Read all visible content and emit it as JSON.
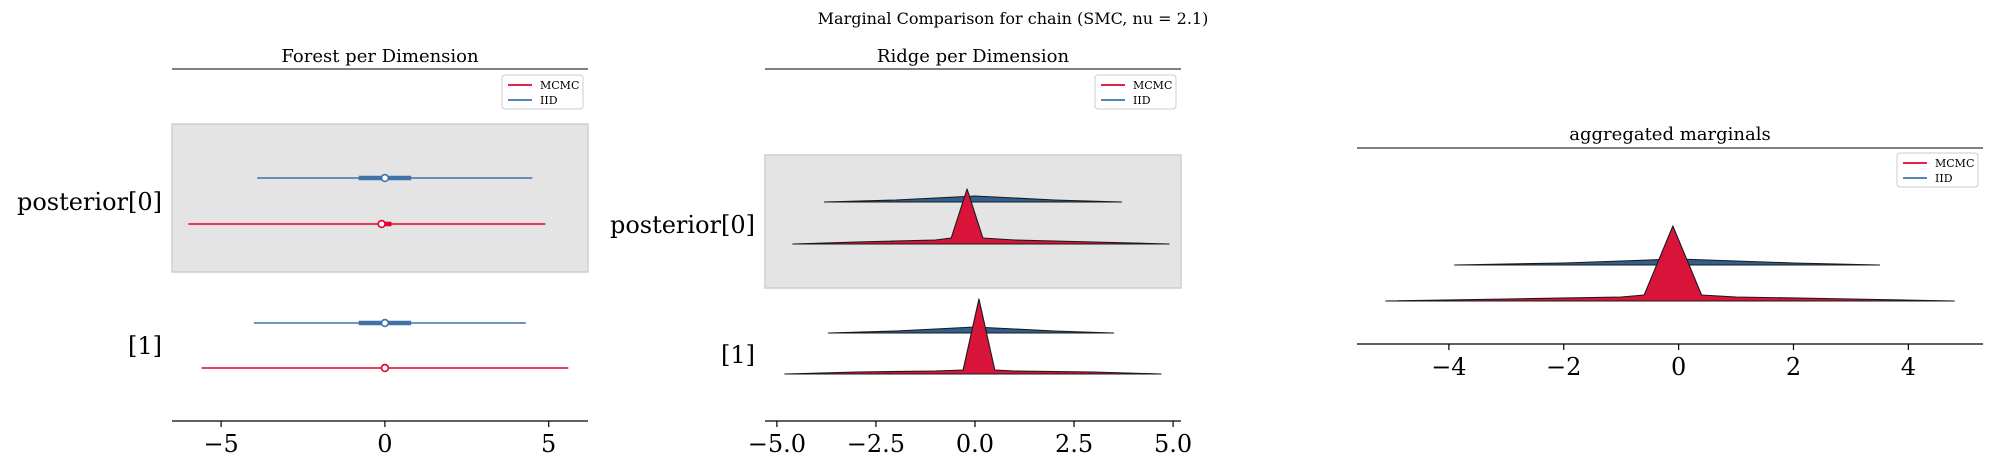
{
  "figure": {
    "suptitle": "Marginal Comparison for chain (SMC, nu = 2.1)"
  },
  "colors": {
    "mcmc": "#e3002b",
    "iid": "#3f72a8",
    "ridge_mcmc_fill": "#d8143a",
    "ridge_iid_fill": "#2f5f8e",
    "band": "#e4e4e4"
  },
  "chart_data": [
    {
      "type": "forest",
      "title": "Forest per Dimension",
      "legend": [
        "MCMC",
        "IID"
      ],
      "legend_loc": "upper right",
      "xlim": [
        -6.5,
        6.2
      ],
      "xticks": [
        -5,
        0,
        5
      ],
      "xtick_labels": [
        "−5",
        "0",
        "5"
      ],
      "rows": [
        {
          "label": "posterior[0]",
          "shaded": true,
          "series": [
            {
              "name": "IID",
              "low": -3.9,
              "q25": -0.8,
              "median": 0.0,
              "q75": 0.8,
              "high": 4.5
            },
            {
              "name": "MCMC",
              "low": -6.0,
              "q25": -0.1,
              "median": -0.1,
              "q75": 0.2,
              "high": 4.9
            }
          ]
        },
        {
          "label": "[1]",
          "shaded": false,
          "series": [
            {
              "name": "IID",
              "low": -4.0,
              "q25": -0.8,
              "median": 0.0,
              "q75": 0.8,
              "high": 4.3
            },
            {
              "name": "MCMC",
              "low": -5.6,
              "q25": 0.0,
              "median": 0.0,
              "q75": 0.1,
              "high": 5.6
            }
          ]
        }
      ]
    },
    {
      "type": "ridge",
      "title": "Ridge per Dimension",
      "legend": [
        "MCMC",
        "IID"
      ],
      "legend_loc": "upper right",
      "xlim": [
        -5.3,
        5.2
      ],
      "xticks": [
        -5.0,
        -2.5,
        0.0,
        2.5,
        5.0
      ],
      "xtick_labels": [
        "−5.0",
        "−2.5",
        "0.0",
        "2.5",
        "5.0"
      ],
      "rows": [
        {
          "label": "posterior[0]",
          "shaded": true,
          "series": [
            {
              "name": "IID",
              "x": [
                -3.8,
                -2.0,
                -1.0,
                0.0,
                1.0,
                2.0,
                3.7
              ],
              "density": [
                0.0,
                0.02,
                0.04,
                0.06,
                0.04,
                0.02,
                0.0
              ]
            },
            {
              "name": "MCMC",
              "x": [
                -4.6,
                -3.0,
                -1.0,
                -0.6,
                -0.2,
                0.2,
                1.0,
                3.0,
                4.9
              ],
              "density": [
                0.0,
                0.02,
                0.04,
                0.06,
                0.55,
                0.06,
                0.04,
                0.02,
                0.0
              ]
            }
          ]
        },
        {
          "label": "[1]",
          "shaded": false,
          "series": [
            {
              "name": "IID",
              "x": [
                -3.7,
                -2.0,
                -1.0,
                0.0,
                1.0,
                2.0,
                3.5
              ],
              "density": [
                0.0,
                0.02,
                0.04,
                0.06,
                0.04,
                0.02,
                0.0
              ]
            },
            {
              "name": "MCMC",
              "x": [
                -4.8,
                -3.0,
                -1.0,
                -0.3,
                0.1,
                0.5,
                1.0,
                3.0,
                4.7
              ],
              "density": [
                0.0,
                0.02,
                0.03,
                0.04,
                0.75,
                0.04,
                0.03,
                0.02,
                0.0
              ]
            }
          ]
        }
      ]
    },
    {
      "type": "ridge",
      "title": "aggregated marginals",
      "legend": [
        "MCMC",
        "IID"
      ],
      "legend_loc": "upper right",
      "xlim": [
        -5.6,
        5.3
      ],
      "xticks": [
        -4,
        -2,
        0,
        2,
        4
      ],
      "xtick_labels": [
        "−4",
        "−2",
        "0",
        "2",
        "4"
      ],
      "rows": [
        {
          "label": "",
          "shaded": false,
          "series": [
            {
              "name": "IID",
              "x": [
                -3.9,
                -2.0,
                -1.0,
                0.0,
                1.0,
                2.0,
                3.5
              ],
              "density": [
                0.0,
                0.02,
                0.04,
                0.06,
                0.04,
                0.02,
                0.0
              ]
            },
            {
              "name": "MCMC",
              "x": [
                -5.1,
                -3.0,
                -1.0,
                -0.6,
                -0.1,
                0.4,
                1.0,
                3.0,
                4.8
              ],
              "density": [
                0.0,
                0.02,
                0.04,
                0.06,
                0.75,
                0.06,
                0.04,
                0.02,
                0.0
              ]
            }
          ]
        }
      ]
    }
  ]
}
